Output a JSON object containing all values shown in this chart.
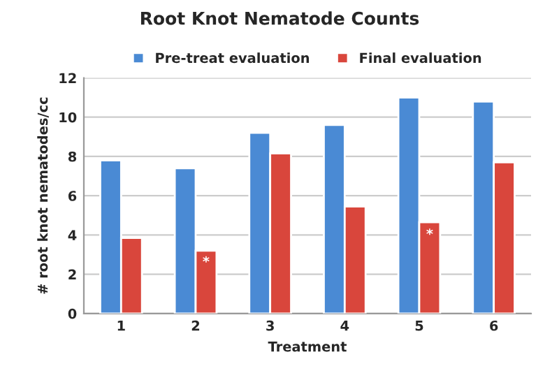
{
  "chart_data": {
    "type": "bar",
    "title": "Root Knot Nematode Counts",
    "xlabel": "Treatment",
    "ylabel": "# root knot nematodes/cc",
    "categories": [
      "1",
      "2",
      "3",
      "4",
      "5",
      "6"
    ],
    "series": [
      {
        "name": "Pre-treat evaluation",
        "color": "#4a8ad4",
        "values": [
          7.8,
          7.4,
          9.2,
          9.6,
          11.0,
          10.8
        ]
      },
      {
        "name": "Final evaluation",
        "color": "#d9463c",
        "values": [
          3.85,
          3.2,
          8.15,
          5.45,
          4.65,
          7.7
        ]
      }
    ],
    "annotations": [
      {
        "text": "*",
        "x": "2",
        "y": 2.6
      },
      {
        "text": "*",
        "x": "5",
        "y": 4.0
      }
    ],
    "ylim": [
      0,
      12
    ],
    "yticks": [
      0,
      2,
      4,
      6,
      8,
      10,
      12
    ],
    "grid": "y",
    "legend": "top"
  }
}
